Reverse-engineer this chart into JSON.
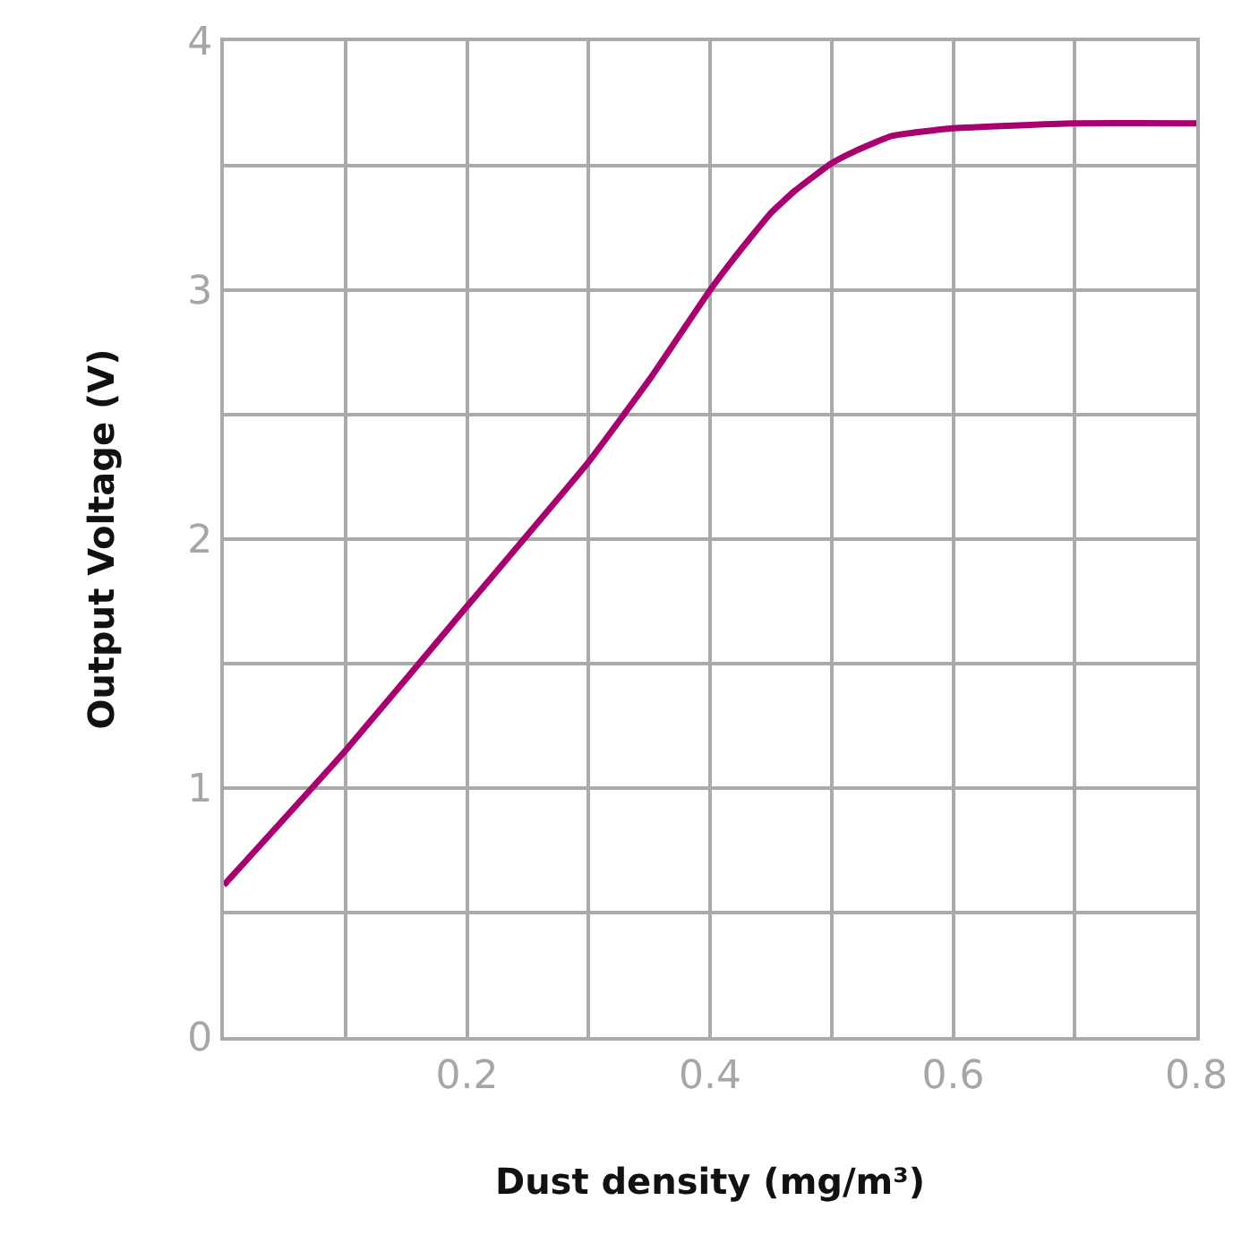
{
  "chart_data": {
    "type": "line",
    "xlabel": "Dust density (mg/m³)",
    "ylabel": "Output Voltage (V)",
    "x": [
      0,
      0.1,
      0.2,
      0.3,
      0.35,
      0.4,
      0.42,
      0.45,
      0.47,
      0.5,
      0.52,
      0.55,
      0.6,
      0.7,
      0.8
    ],
    "series": [
      {
        "color": "#a8006e",
        "values": [
          0.61,
          1.15,
          1.73,
          2.31,
          2.64,
          3.0,
          3.13,
          3.31,
          3.4,
          3.51,
          3.56,
          3.62,
          3.65,
          3.67,
          3.67
        ]
      }
    ],
    "xlim": [
      0,
      0.8
    ],
    "ylim": [
      0,
      4
    ],
    "xticks": [
      {
        "value": 0,
        "label": null
      },
      {
        "value": 0.1,
        "label": null
      },
      0.2,
      {
        "value": 0.3,
        "label": null
      },
      0.4,
      {
        "value": 0.5,
        "label": null
      },
      0.6,
      {
        "value": 0.7,
        "label": null
      },
      0.8
    ],
    "yticks": [
      0,
      {
        "value": 0.5,
        "label": null
      },
      1,
      {
        "value": 1.5,
        "label": null
      },
      2,
      {
        "value": 2.5,
        "label": null
      },
      3,
      {
        "value": 3.5,
        "label": null
      },
      4
    ],
    "grid": true,
    "marker": "none",
    "line_style": "solid"
  }
}
